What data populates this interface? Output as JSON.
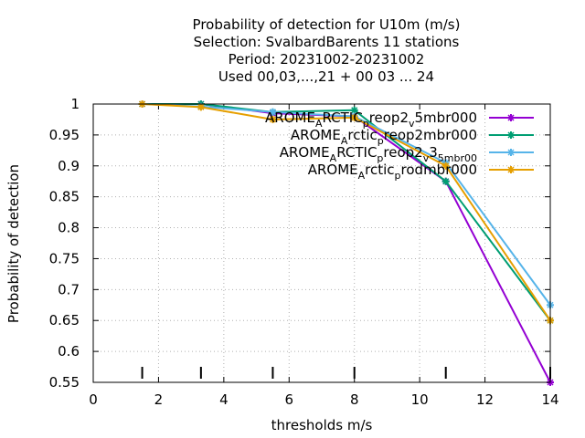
{
  "chart_data": {
    "type": "line",
    "title_lines": [
      "Probability of detection  for U10m (m/s)",
      "Selection: SvalbardBarents     11 stations",
      "Period: 20231002-20231002",
      "Used  00,03,...,21  + 00 03 ... 24"
    ],
    "xlabel": "thresholds m/s",
    "ylabel": "Probability of detection",
    "xlim": [
      0,
      14
    ],
    "ylim": [
      0.55,
      1
    ],
    "xticks": [
      0,
      2,
      4,
      6,
      8,
      10,
      12,
      14
    ],
    "yticks": [
      0.55,
      0.6,
      0.65,
      0.7,
      0.75,
      0.8,
      0.85,
      0.9,
      0.95,
      1
    ],
    "ytick_labels": [
      "0.55",
      "0.6",
      "0.65",
      "0.7",
      "0.75",
      "0.8",
      "0.85",
      "0.9",
      "0.95",
      "1"
    ],
    "grid": true,
    "legend_position": "top-right",
    "threshold_marks": [
      1.5,
      3.3,
      5.5,
      8,
      10.8,
      14
    ],
    "series": [
      {
        "name": "AROME_ARCTIC_preop2_v5mbr000",
        "legend_parts": [
          "AROME",
          "A",
          "RCTIC",
          "p",
          "reop2",
          "v",
          "5mbr000"
        ],
        "color": "#9400d3",
        "x": [
          1.5,
          3.3,
          5.5,
          8,
          10.8,
          14
        ],
        "y": [
          1.0,
          1.0,
          0.985,
          0.98,
          0.875,
          0.55
        ]
      },
      {
        "name": "AROME_Arctic_preop2mbr000",
        "legend_parts": [
          "AROME",
          "A",
          "rctic",
          "p",
          "reop2mbr000"
        ],
        "color": "#009e73",
        "x": [
          1.5,
          3.3,
          5.5,
          8,
          10.8,
          14
        ],
        "y": [
          1.0,
          1.0,
          0.987,
          0.99,
          0.875,
          0.65
        ]
      },
      {
        "name": "AROME_ARCTIC_preop2_v3_5mbr00",
        "legend_parts": [
          "AROME",
          "A",
          "RCTIC",
          "p",
          "reop2",
          "v",
          "3",
          "5mbr00"
        ],
        "color": "#56b4e9",
        "x": [
          1.5,
          3.3,
          5.5,
          8,
          10.8,
          14
        ],
        "y": [
          1.0,
          0.996,
          0.987,
          0.98,
          0.905,
          0.675
        ]
      },
      {
        "name": "AROME_Arctic_prodmbr000",
        "legend_parts": [
          "AROME",
          "A",
          "rctic",
          "p",
          "rodmbr000"
        ],
        "color": "#e69f00",
        "x": [
          1.5,
          3.3,
          5.5,
          8,
          10.8,
          14
        ],
        "y": [
          1.0,
          0.995,
          0.975,
          0.978,
          0.9,
          0.65
        ]
      }
    ]
  }
}
